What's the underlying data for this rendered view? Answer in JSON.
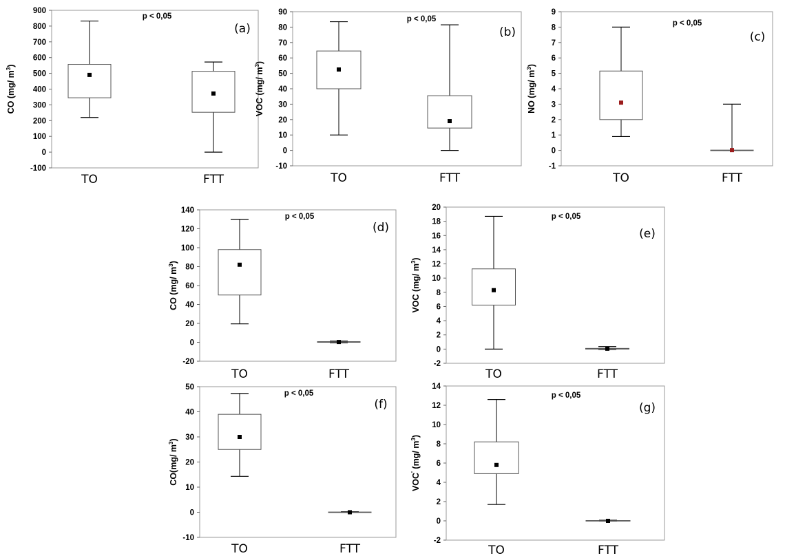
{
  "chart_data": [
    {
      "type": "box",
      "panel": "(a)",
      "annotation": "p < 0,05",
      "ylabel": "CO (mg/ m",
      "ylabel_sup": "3",
      "ylabel_end": ")",
      "ylim": [
        -100,
        900
      ],
      "yticks": [
        -100,
        0,
        100,
        200,
        300,
        400,
        500,
        600,
        700,
        800,
        900
      ],
      "categories": [
        "TO",
        "FTT"
      ],
      "boxes": [
        {
          "min": 220,
          "q1": 345,
          "mean": 490,
          "q3": 557,
          "max": 832,
          "marker_color": "#000000"
        },
        {
          "min": 0,
          "q1": 253,
          "mean": 372,
          "q3": 513,
          "max": 572,
          "marker_color": "#000000"
        }
      ]
    },
    {
      "type": "box",
      "panel": "(b)",
      "annotation": "p < 0,05",
      "ylabel": "VOC (mg/ m",
      "ylabel_sup": "3",
      "ylabel_end": ")",
      "ylim": [
        -10,
        90
      ],
      "yticks": [
        -10,
        0,
        10,
        20,
        30,
        40,
        50,
        60,
        70,
        80,
        90
      ],
      "categories": [
        "TO",
        "FTT"
      ],
      "boxes": [
        {
          "min": 10,
          "q1": 40,
          "mean": 52.5,
          "q3": 64.5,
          "max": 83.5,
          "marker_color": "#000000"
        },
        {
          "min": 0,
          "q1": 14.5,
          "mean": 19,
          "q3": 35.5,
          "max": 81.5,
          "marker_color": "#000000"
        }
      ]
    },
    {
      "type": "box",
      "panel": "(c)",
      "annotation": "p < 0,05",
      "ylabel": "NO (mg/ m",
      "ylabel_sup": "3",
      "ylabel_end": ")",
      "ylim": [
        -1,
        9
      ],
      "yticks": [
        -1,
        0,
        1,
        2,
        3,
        4,
        5,
        6,
        7,
        8,
        9
      ],
      "categories": [
        "TO",
        "FTT"
      ],
      "boxes": [
        {
          "min": 0.9,
          "q1": 2.0,
          "mean": 3.1,
          "q3": 5.15,
          "max": 8.0,
          "marker_color": "#9b1c1c"
        },
        {
          "min": 0,
          "q1": 0,
          "mean": 0.02,
          "q3": 0.02,
          "max": 3.0,
          "marker_color": "#9b1c1c"
        }
      ]
    },
    {
      "type": "box",
      "panel": "(d)",
      "annotation": "p < 0,05",
      "ylabel": "CO (mg/ m",
      "ylabel_sup": "3",
      "ylabel_end": ")",
      "ylim": [
        -20,
        140
      ],
      "yticks": [
        -20,
        0,
        20,
        40,
        60,
        80,
        100,
        120,
        140
      ],
      "categories": [
        "TO",
        "FTT"
      ],
      "boxes": [
        {
          "min": 19.5,
          "q1": 50,
          "mean": 82,
          "q3": 98,
          "max": 130,
          "marker_color": "#000000"
        },
        {
          "min": -0.5,
          "q1": 0,
          "mean": 0.3,
          "q3": 0.7,
          "max": 1.3,
          "marker_color": "#000000"
        }
      ]
    },
    {
      "type": "box",
      "panel": "(e)",
      "annotation": "p < 0,05",
      "ylabel": "VOC (mg/ m",
      "ylabel_sup": "3",
      "ylabel_end": ")",
      "ylim": [
        -2,
        20
      ],
      "yticks": [
        -2,
        0,
        2,
        4,
        6,
        8,
        10,
        12,
        14,
        16,
        18,
        20
      ],
      "categories": [
        "TO",
        "FTT"
      ],
      "boxes": [
        {
          "min": 0,
          "q1": 6.2,
          "mean": 8.3,
          "q3": 11.3,
          "max": 18.7,
          "marker_color": "#000000"
        },
        {
          "min": -0.05,
          "q1": 0,
          "mean": 0.05,
          "q3": 0.1,
          "max": 0.35,
          "marker_color": "#000000"
        }
      ]
    },
    {
      "type": "box",
      "panel": "(f)",
      "annotation": "p < 0,05",
      "ylabel": "CO(mg/ m",
      "ylabel_sup": "3",
      "ylabel_end": ")",
      "ylim": [
        -10,
        50
      ],
      "yticks": [
        -10,
        0,
        10,
        20,
        30,
        40,
        50
      ],
      "categories": [
        "TO",
        "FTT"
      ],
      "boxes": [
        {
          "min": 14.3,
          "q1": 25,
          "mean": 30,
          "q3": 39,
          "max": 47.3,
          "marker_color": "#000000"
        },
        {
          "min": -0.1,
          "q1": 0,
          "mean": 0,
          "q3": 0.1,
          "max": 0.2,
          "marker_color": "#000000"
        }
      ]
    },
    {
      "type": "box",
      "panel": "(g)",
      "annotation": "p < 0,05",
      "ylabel": "VOC",
      "ylabel_mark": "'",
      "ylabel_mid": " (mg/ m",
      "ylabel_sup": "3",
      "ylabel_end": ")",
      "ylim": [
        -2,
        14
      ],
      "yticks": [
        -2,
        0,
        2,
        4,
        6,
        8,
        10,
        12,
        14
      ],
      "categories": [
        "TO",
        "FTT"
      ],
      "boxes": [
        {
          "min": 1.7,
          "q1": 4.9,
          "mean": 5.8,
          "q3": 8.2,
          "max": 12.6,
          "marker_color": "#000000"
        },
        {
          "min": -0.03,
          "q1": 0,
          "mean": 0,
          "q3": 0.03,
          "max": 0.06,
          "marker_color": "#000000"
        }
      ]
    }
  ]
}
